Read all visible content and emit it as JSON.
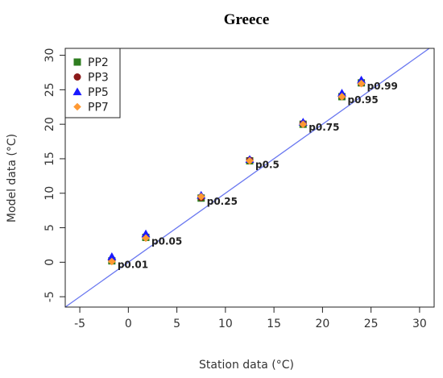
{
  "chart_data": {
    "type": "scatter",
    "title": "Greece",
    "xlabel": "Station data (°C)",
    "ylabel": "Model data (°C)",
    "xlim": [
      -6.5,
      31.5
    ],
    "ylim": [
      -6.5,
      31
    ],
    "xticks": [
      -5,
      0,
      5,
      10,
      15,
      20,
      25,
      30
    ],
    "yticks": [
      -5,
      0,
      5,
      10,
      15,
      20,
      25,
      30
    ],
    "xtick_labels": [
      "-5",
      "0",
      "5",
      "10",
      "15",
      "20",
      "25",
      "30"
    ],
    "ytick_labels": [
      "-5",
      "0",
      "5",
      "10",
      "15",
      "20",
      "25",
      "30"
    ],
    "grid": false,
    "legend_position": "top-left",
    "reference_line": {
      "type": "identity",
      "color": "#6a78f0"
    },
    "series": [
      {
        "name": "PP2",
        "marker": "square",
        "color": "#2e7d1f",
        "points": [
          [
            -1.7,
            0.2
          ],
          [
            1.8,
            3.6
          ],
          [
            7.5,
            9.3
          ],
          [
            12.5,
            14.7
          ],
          [
            18.0,
            20.0
          ],
          [
            22.0,
            24.0
          ],
          [
            24.0,
            26.0
          ]
        ]
      },
      {
        "name": "PP3",
        "marker": "circle",
        "color": "#8b1a1a",
        "points": [
          [
            -1.7,
            0.3
          ],
          [
            1.8,
            3.7
          ],
          [
            7.5,
            9.4
          ],
          [
            12.5,
            14.8
          ],
          [
            18.0,
            20.1
          ],
          [
            22.0,
            24.1
          ],
          [
            24.0,
            26.0
          ]
        ]
      },
      {
        "name": "PP5",
        "marker": "triangle",
        "color": "#1a1aff",
        "points": [
          [
            -1.7,
            0.8
          ],
          [
            1.8,
            4.1
          ],
          [
            7.5,
            9.7
          ],
          [
            12.5,
            14.9
          ],
          [
            18.0,
            20.3
          ],
          [
            22.0,
            24.5
          ],
          [
            24.0,
            26.4
          ]
        ]
      },
      {
        "name": "PP7",
        "marker": "diamond",
        "color": "#ff9933",
        "points": [
          [
            -1.7,
            0.1
          ],
          [
            1.8,
            3.5
          ],
          [
            7.5,
            9.5
          ],
          [
            12.5,
            14.7
          ],
          [
            18.0,
            20.0
          ],
          [
            22.0,
            24.0
          ],
          [
            24.0,
            25.9
          ]
        ]
      }
    ],
    "annotations": [
      {
        "text": "p0.01",
        "x": -1.7,
        "y": 0.1
      },
      {
        "text": "p0.05",
        "x": 1.8,
        "y": 3.5
      },
      {
        "text": "p0.25",
        "x": 7.5,
        "y": 9.3
      },
      {
        "text": "p0.5",
        "x": 12.5,
        "y": 14.6
      },
      {
        "text": "p0.75",
        "x": 18.0,
        "y": 20.0
      },
      {
        "text": "p0.95",
        "x": 22.0,
        "y": 24.0
      },
      {
        "text": "p0.99",
        "x": 24.0,
        "y": 26.0
      }
    ]
  }
}
